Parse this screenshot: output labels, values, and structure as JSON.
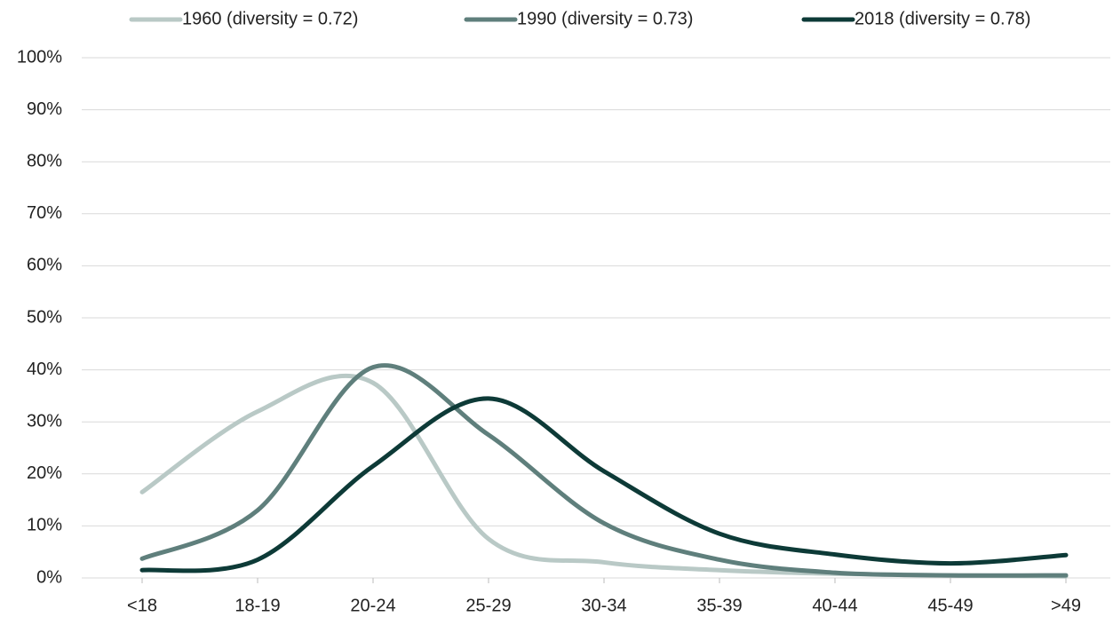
{
  "chart_data": {
    "type": "line",
    "categories": [
      "<18",
      "18-19",
      "20-24",
      "25-29",
      "30-34",
      "35-39",
      "40-44",
      "45-49",
      ">49"
    ],
    "series": [
      {
        "name": "1960 (diversity = 0.72)",
        "color": "#b9c9c6",
        "values": [
          16.5,
          32,
          37.5,
          7.5,
          3,
          1.5,
          0.8,
          0.5,
          0.3
        ]
      },
      {
        "name": "1990 (diversity = 0.73)",
        "color": "#5f7f7c",
        "values": [
          3.7,
          13,
          40.5,
          27.5,
          10.5,
          3.5,
          1,
          0.5,
          0.5
        ]
      },
      {
        "name": "2018 (diversity = 0.78)",
        "color": "#0d3a37",
        "values": [
          1.5,
          3.5,
          21.5,
          34.5,
          20.5,
          8.5,
          4.5,
          2.8,
          4.4
        ]
      }
    ],
    "ylim": [
      0,
      100
    ],
    "yticks": [
      {
        "value": 0,
        "label": "0%"
      },
      {
        "value": 10,
        "label": "10%"
      },
      {
        "value": 20,
        "label": "20%"
      },
      {
        "value": 30,
        "label": "30%"
      },
      {
        "value": 40,
        "label": "40%"
      },
      {
        "value": 50,
        "label": "50%"
      },
      {
        "value": 60,
        "label": "60%"
      },
      {
        "value": 70,
        "label": "70%"
      },
      {
        "value": 80,
        "label": "80%"
      },
      {
        "value": 90,
        "label": "90%"
      },
      {
        "value": 100,
        "label": "100%"
      }
    ],
    "grid": true,
    "legend": "top",
    "smooth": true
  }
}
